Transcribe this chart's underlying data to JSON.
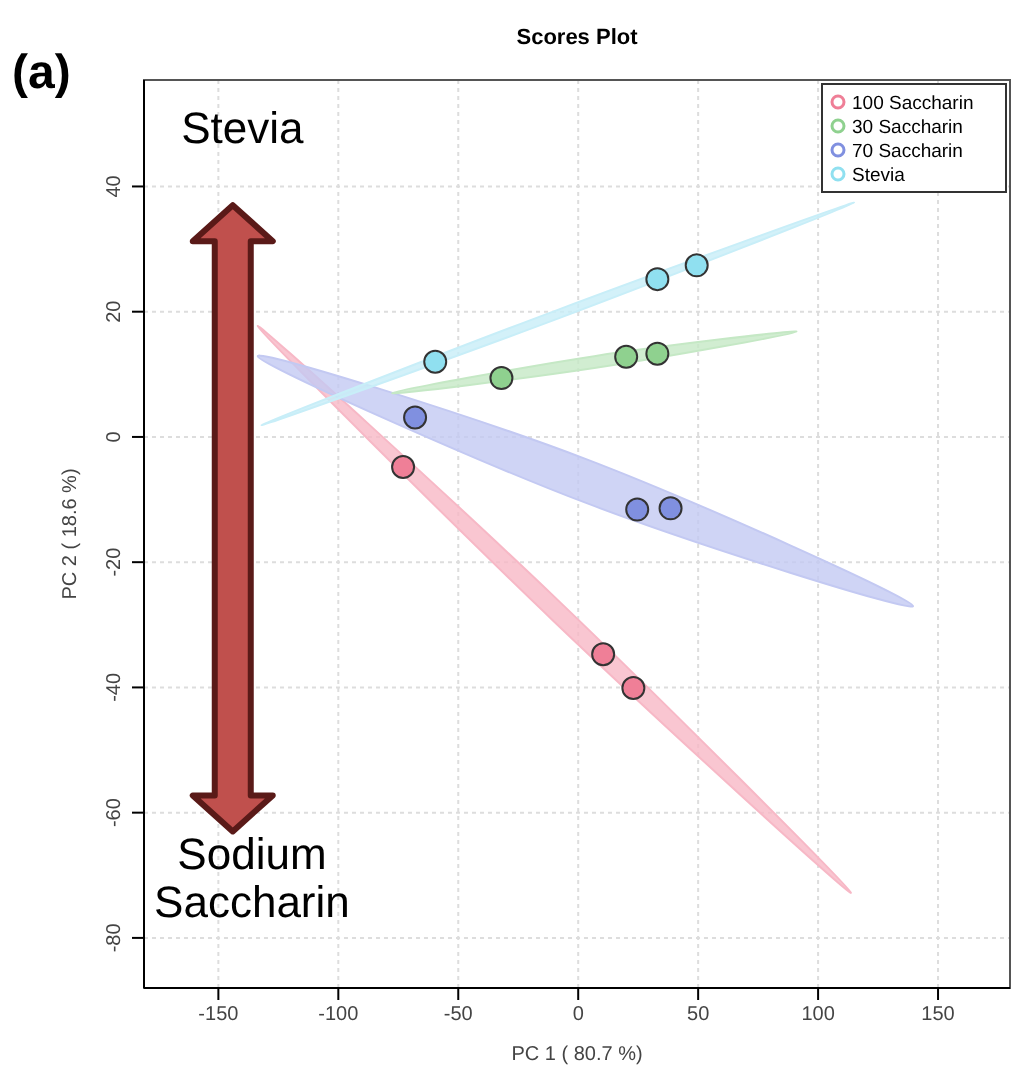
{
  "chart_data": {
    "type": "scatter",
    "title": "Scores Plot",
    "xlabel": "PC 1 ( 80.7 %)",
    "ylabel": "PC 2 ( 18.6 %)",
    "annotations": [
      "(a)",
      "Stevia",
      "Sodium Saccharin"
    ],
    "xlim": [
      -181,
      180
    ],
    "ylim": [
      -88,
      57
    ],
    "xticks": [
      -150,
      -100,
      -50,
      0,
      50,
      100,
      150
    ],
    "yticks": [
      -80,
      -60,
      -40,
      -20,
      0,
      20,
      40
    ],
    "grid": true,
    "legend": "top right",
    "series": [
      {
        "type": "area",
        "color": "#f7b8c6",
        "x": [
          -133.6,
          -10,
          113.7,
          -10,
          -133.6
        ],
        "values": [
          17.7,
          -25.5,
          -72.8,
          -29.5,
          17.7
        ]
      },
      {
        "type": "area",
        "color": "#c3c9f2",
        "x": [
          -133.6,
          3,
          139.6,
          3,
          -133.6
        ],
        "values": [
          12.9,
          -3.5,
          -27,
          -10.5,
          12.9
        ]
      },
      {
        "type": "area",
        "color": "#c5e8c5",
        "x": [
          -77.6,
          6.7,
          91,
          6.7,
          -77.6
        ],
        "values": [
          7,
          12.9,
          16.8,
          11,
          7
        ]
      },
      {
        "type": "area",
        "color": "#c8eef8",
        "x": [
          -132,
          -8.5,
          115,
          -8.5,
          -132
        ],
        "values": [
          1.9,
          20.3,
          37.4,
          18.9,
          1.9
        ]
      },
      {
        "name": "100 Saccharin",
        "marker": "circle",
        "color": "#ef7f97",
        "x": [
          -73,
          10.4,
          23
        ],
        "values": [
          -4.8,
          -34.7,
          -40.1
        ]
      },
      {
        "name": "30 Saccharin",
        "marker": "circle",
        "color": "#8fd18f",
        "x": [
          -32,
          20,
          33
        ],
        "values": [
          9.4,
          12.8,
          13.3
        ]
      },
      {
        "name": "70 Saccharin",
        "marker": "circle",
        "color": "#8090e0",
        "x": [
          -68,
          24.6,
          38.5
        ],
        "values": [
          3.1,
          -11.6,
          -11.4
        ]
      },
      {
        "name": "Stevia",
        "marker": "circle",
        "color": "#90e0f0",
        "x": [
          -59.6,
          33,
          49.4
        ],
        "values": [
          12,
          25.2,
          27.4
        ]
      }
    ]
  }
}
